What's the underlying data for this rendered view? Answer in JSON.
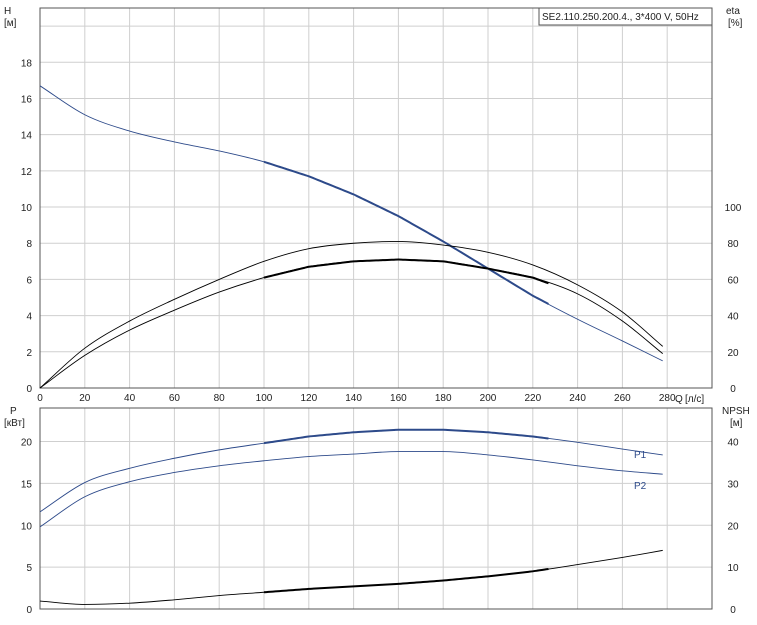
{
  "chart_data": [
    {
      "type": "line",
      "title": "SE2.110.250.200.4., 3*400 V, 50Hz",
      "x_axis": {
        "label": "Q",
        "unit": "[л/с]",
        "range": [
          0,
          300
        ],
        "ticks": [
          "0",
          "20",
          "40",
          "60",
          "80",
          "100",
          "120",
          "140",
          "160",
          "180",
          "200",
          "220",
          "240",
          "260",
          "280"
        ]
      },
      "y_left": {
        "label": "H",
        "unit": "[м]",
        "range": [
          0,
          21
        ],
        "ticks": [
          "0",
          "2",
          "4",
          "6",
          "8",
          "10",
          "12",
          "14",
          "16",
          "18"
        ]
      },
      "y_right": {
        "label": "eta",
        "unit": "[%]",
        "range": [
          0,
          210
        ],
        "ticks": [
          "0",
          "20",
          "40",
          "60",
          "80",
          "100"
        ]
      },
      "grid": true,
      "series": [
        {
          "axis": "left",
          "color": "#2d4a8a",
          "x": [
            0,
            20,
            40,
            60,
            80,
            100,
            120,
            140,
            160,
            180,
            200,
            220,
            240,
            260,
            278
          ],
          "y": [
            16.7,
            15.1,
            14.2,
            13.6,
            13.1,
            12.5,
            11.7,
            10.7,
            9.5,
            8.1,
            6.6,
            5.1,
            3.8,
            2.6,
            1.5
          ],
          "highlight": [
            100,
            227
          ]
        },
        {
          "axis": "right",
          "color": "#000000",
          "x": [
            0,
            20,
            40,
            60,
            80,
            100,
            120,
            140,
            160,
            180,
            200,
            220,
            240,
            260,
            278
          ],
          "y": [
            0,
            22,
            37,
            49,
            60,
            70,
            77,
            80,
            81,
            79,
            75,
            68,
            57,
            42,
            23
          ]
        },
        {
          "axis": "right",
          "color": "#000000",
          "x": [
            0,
            20,
            40,
            60,
            80,
            100,
            120,
            140,
            160,
            180,
            200,
            220,
            240,
            260,
            278
          ],
          "y": [
            0,
            18,
            32,
            43,
            53,
            61,
            67,
            70,
            71,
            70,
            66,
            61,
            52,
            37,
            19
          ],
          "highlight": [
            100,
            227
          ]
        }
      ]
    },
    {
      "type": "line",
      "x_axis": {
        "range": [
          0,
          300
        ],
        "ticks": [
          "0",
          "20",
          "40",
          "60",
          "80",
          "100",
          "120",
          "140",
          "160",
          "180",
          "200",
          "220",
          "240",
          "260",
          "280"
        ]
      },
      "y_left": {
        "label": "P",
        "unit": "[кВт]",
        "range": [
          0,
          24
        ],
        "ticks": [
          "0",
          "5",
          "10",
          "15",
          "20"
        ]
      },
      "y_right": {
        "label": "NPSH",
        "unit": "[м]",
        "range": [
          0,
          48
        ],
        "ticks": [
          "0",
          "10",
          "20",
          "30",
          "40"
        ]
      },
      "grid": true,
      "series": [
        {
          "name": "P1",
          "axis": "left",
          "color": "#2d4a8a",
          "x": [
            0,
            20,
            40,
            60,
            80,
            100,
            120,
            140,
            160,
            180,
            200,
            220,
            240,
            260,
            278
          ],
          "y": [
            11.6,
            15.1,
            16.8,
            18.0,
            19.0,
            19.8,
            20.6,
            21.1,
            21.4,
            21.4,
            21.1,
            20.6,
            19.9,
            19.1,
            18.4
          ],
          "highlight": [
            100,
            227
          ]
        },
        {
          "name": "P2",
          "axis": "left",
          "color": "#2d4a8a",
          "x": [
            0,
            20,
            40,
            60,
            80,
            100,
            120,
            140,
            160,
            180,
            200,
            220,
            240,
            260,
            278
          ],
          "y": [
            9.8,
            13.4,
            15.2,
            16.3,
            17.1,
            17.7,
            18.2,
            18.5,
            18.8,
            18.8,
            18.4,
            17.8,
            17.1,
            16.5,
            16.1
          ]
        },
        {
          "axis": "right",
          "color": "#000000",
          "x": [
            0,
            20,
            40,
            60,
            80,
            100,
            120,
            140,
            160,
            180,
            200,
            220,
            240,
            260,
            278
          ],
          "y": [
            1.9,
            1.1,
            1.4,
            2.2,
            3.2,
            4.0,
            4.8,
            5.4,
            6.0,
            6.8,
            7.8,
            9.0,
            10.6,
            12.3,
            14.0
          ],
          "highlight": [
            100,
            227
          ]
        }
      ]
    }
  ]
}
